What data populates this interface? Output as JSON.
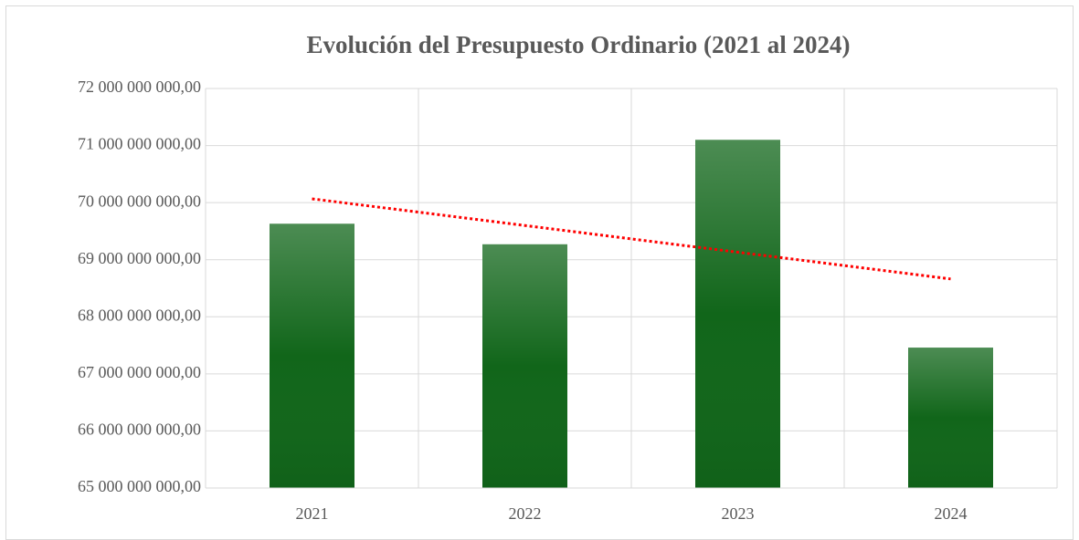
{
  "chart_data": {
    "type": "bar",
    "title": "Evolución del Presupuesto Ordinario (2021 al 2024)",
    "categories": [
      "2021",
      "2022",
      "2023",
      "2024"
    ],
    "values": [
      69630000000,
      69270000000,
      71100000000,
      67460000000
    ],
    "color": "#11661a",
    "ylim": [
      65000000000,
      72000000000
    ],
    "yticks": [
      {
        "value": 65000000000,
        "label": "65 000 000 000,00"
      },
      {
        "value": 66000000000,
        "label": "66 000 000 000,00"
      },
      {
        "value": 67000000000,
        "label": "67 000 000 000,00"
      },
      {
        "value": 68000000000,
        "label": "68 000 000 000,00"
      },
      {
        "value": 69000000000,
        "label": "69 000 000 000,00"
      },
      {
        "value": 70000000000,
        "label": "70 000 000 000,00"
      },
      {
        "value": 71000000000,
        "label": "71 000 000 000,00"
      },
      {
        "value": 72000000000,
        "label": "72 000 000 000,00"
      }
    ],
    "grid": true,
    "trendline": {
      "type": "linear",
      "color": "#ff0000"
    }
  }
}
